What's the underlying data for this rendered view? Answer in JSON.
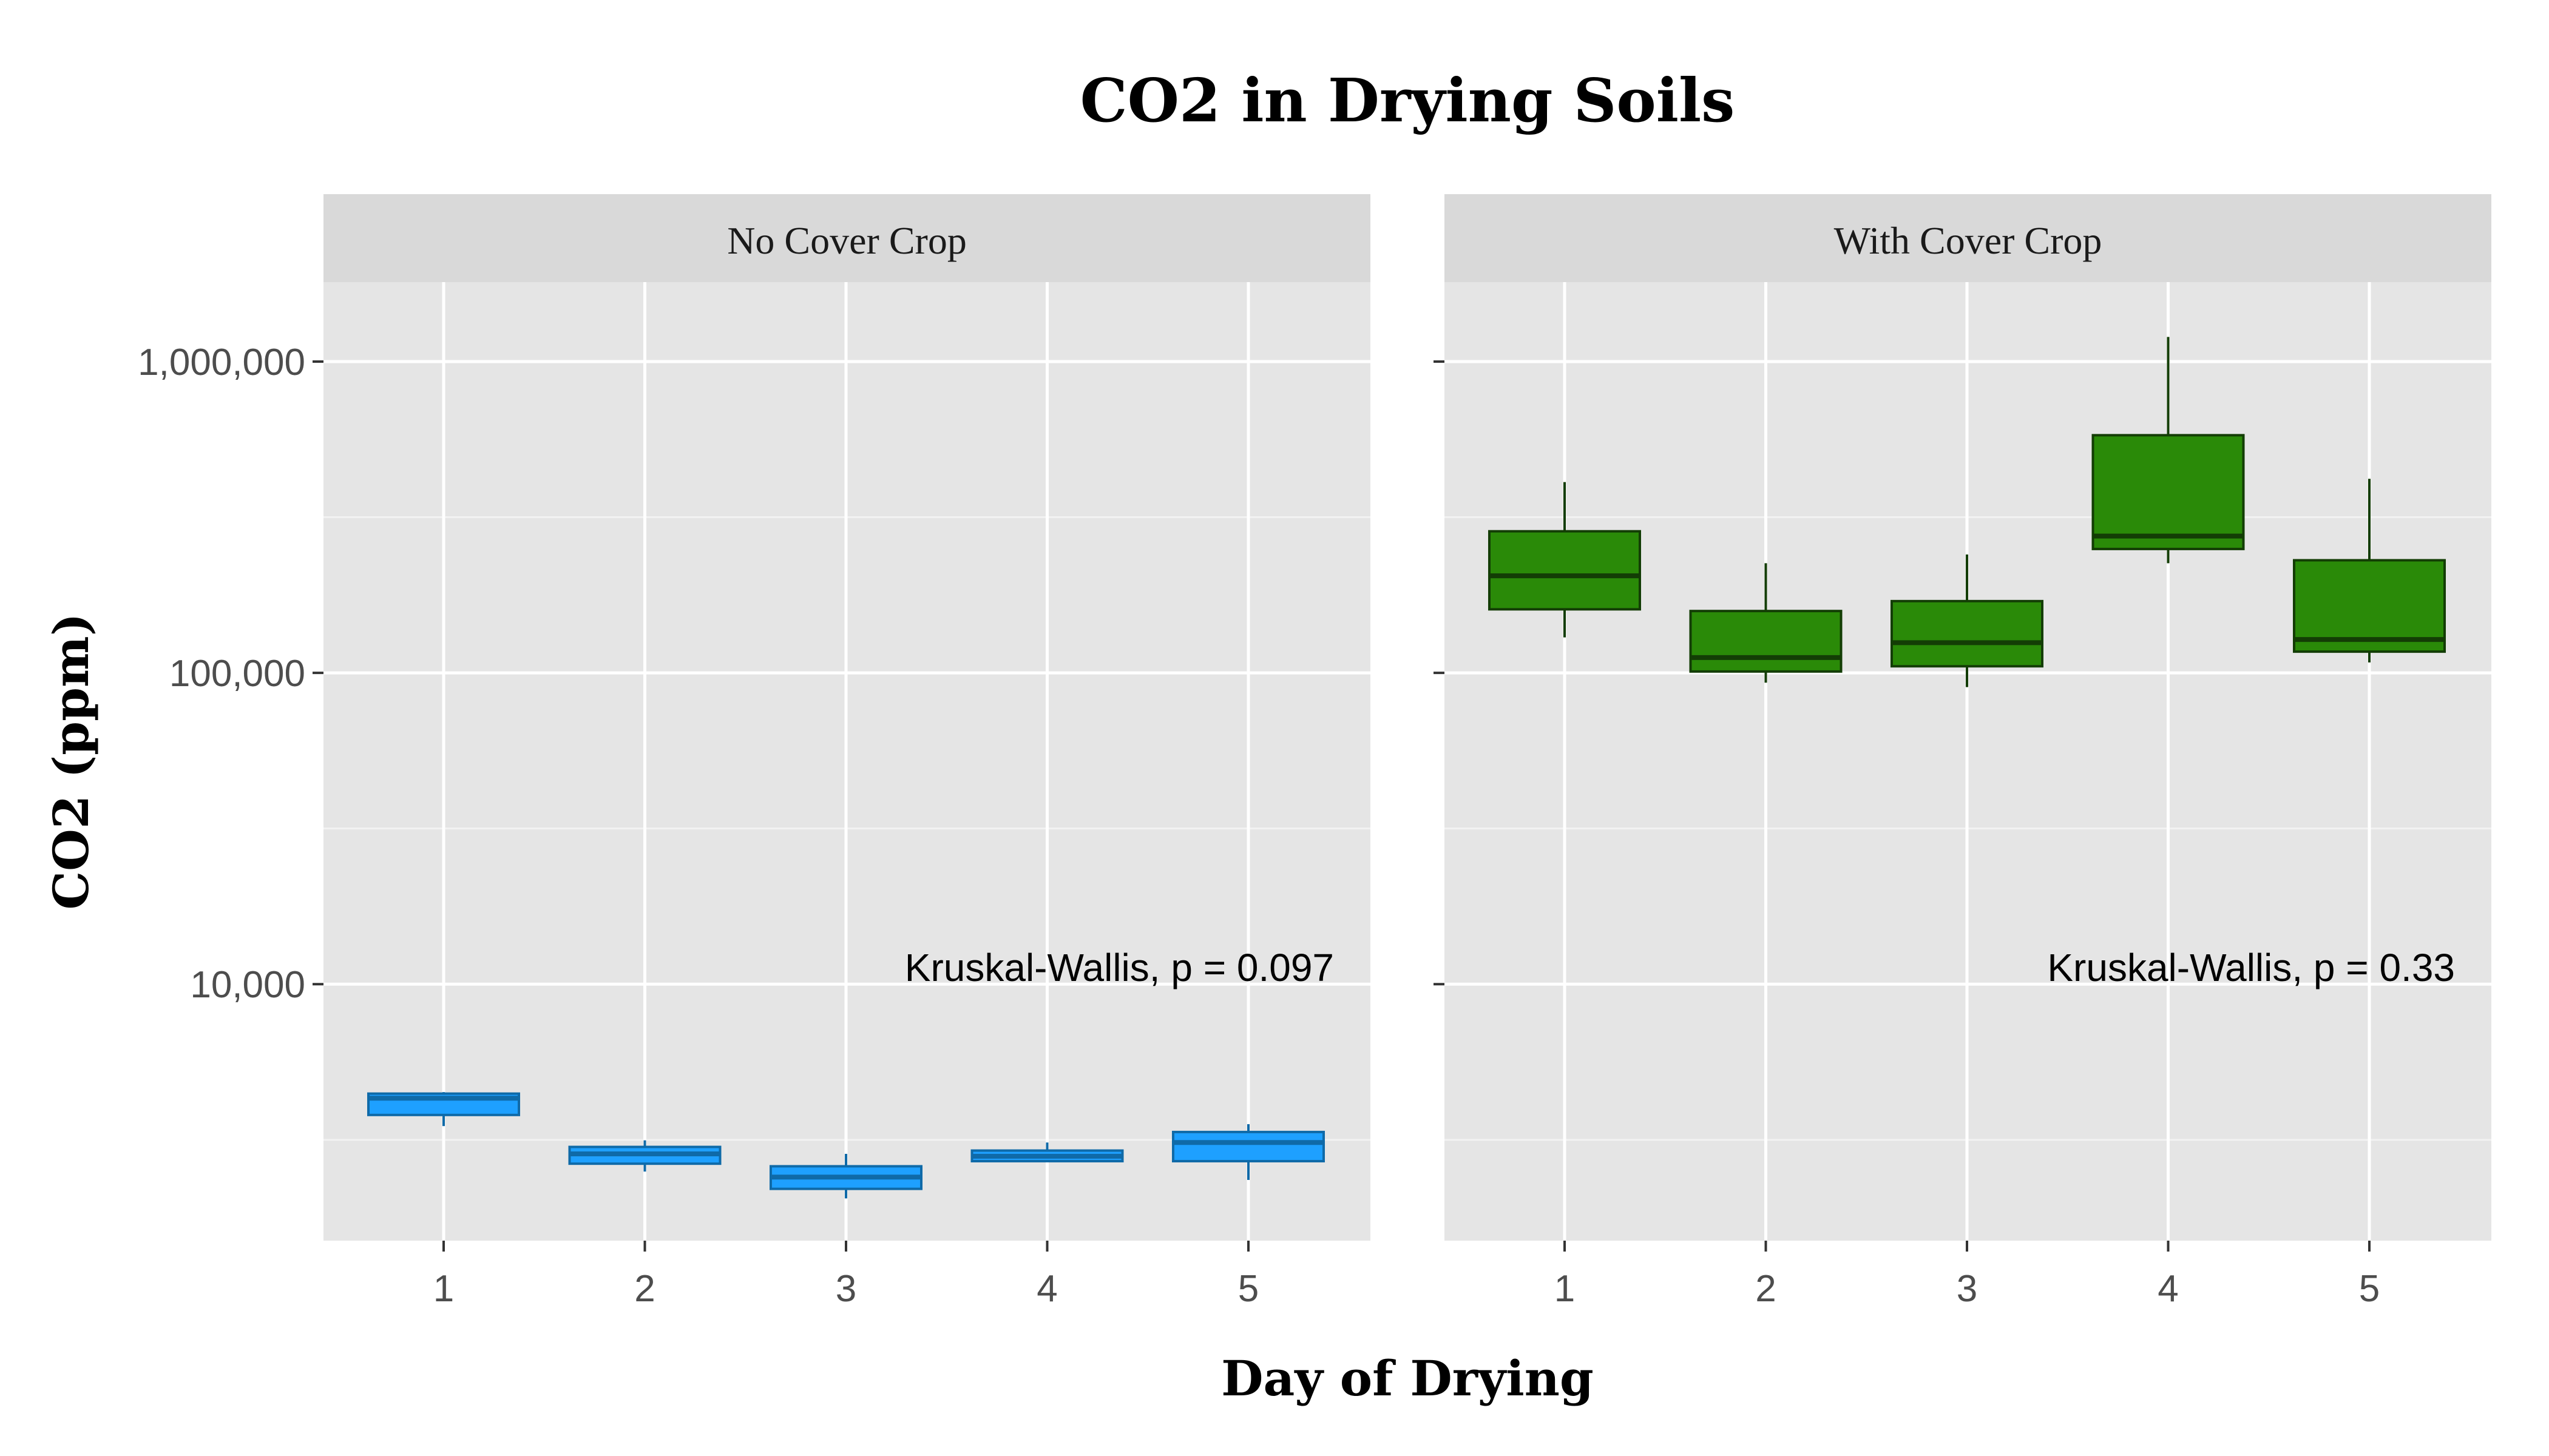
{
  "chart_data": {
    "type": "box",
    "title": "CO2 in Drying Soils",
    "xlabel": "Day of Drying",
    "ylabel": "CO2 (ppm)",
    "y_scale": "log10",
    "ylim": [
      1500,
      1800000
    ],
    "y_ticks": [
      10000,
      100000,
      1000000
    ],
    "y_tick_labels": [
      "10,000",
      "100,000",
      "1,000,000"
    ],
    "y_minor_gridlines": [
      3162,
      31623,
      316228
    ],
    "categories": [
      "1",
      "2",
      "3",
      "4",
      "5"
    ],
    "grid": true,
    "legend": "none",
    "panels": [
      {
        "name": "No Cover Crop",
        "fill_color": "#1ea0ff",
        "line_color": "#0f6aa8",
        "annotation": "Kruskal-Wallis, p = 0.097",
        "boxes": [
          {
            "x": "1",
            "lower_whisker": 3500,
            "q1": 3800,
            "median": 4300,
            "q3": 4450,
            "upper_whisker": 4500
          },
          {
            "x": "2",
            "lower_whisker": 2500,
            "q1": 2650,
            "median": 2850,
            "q3": 3000,
            "upper_whisker": 3150
          },
          {
            "x": "3",
            "lower_whisker": 2050,
            "q1": 2200,
            "median": 2400,
            "q3": 2600,
            "upper_whisker": 2850
          },
          {
            "x": "4",
            "lower_whisker": 2700,
            "q1": 2700,
            "median": 2800,
            "q3": 2920,
            "upper_whisker": 3100
          },
          {
            "x": "5",
            "lower_whisker": 2350,
            "q1": 2700,
            "median": 3100,
            "q3": 3350,
            "upper_whisker": 3550
          }
        ]
      },
      {
        "name": "With Cover Crop",
        "fill_color": "#2a8a08",
        "line_color": "#133d05",
        "annotation": "Kruskal-Wallis, p = 0.33",
        "boxes": [
          {
            "x": "1",
            "lower_whisker": 130000,
            "q1": 160000,
            "median": 205000,
            "q3": 285000,
            "upper_whisker": 410000
          },
          {
            "x": "2",
            "lower_whisker": 93000,
            "q1": 101000,
            "median": 112000,
            "q3": 158000,
            "upper_whisker": 225000
          },
          {
            "x": "3",
            "lower_whisker": 90000,
            "q1": 105000,
            "median": 125000,
            "q3": 170000,
            "upper_whisker": 240000
          },
          {
            "x": "4",
            "lower_whisker": 225000,
            "q1": 250000,
            "median": 275000,
            "q3": 580000,
            "upper_whisker": 1200000
          },
          {
            "x": "5",
            "lower_whisker": 108000,
            "q1": 117000,
            "median": 128000,
            "q3": 230000,
            "upper_whisker": 420000
          }
        ]
      }
    ]
  }
}
